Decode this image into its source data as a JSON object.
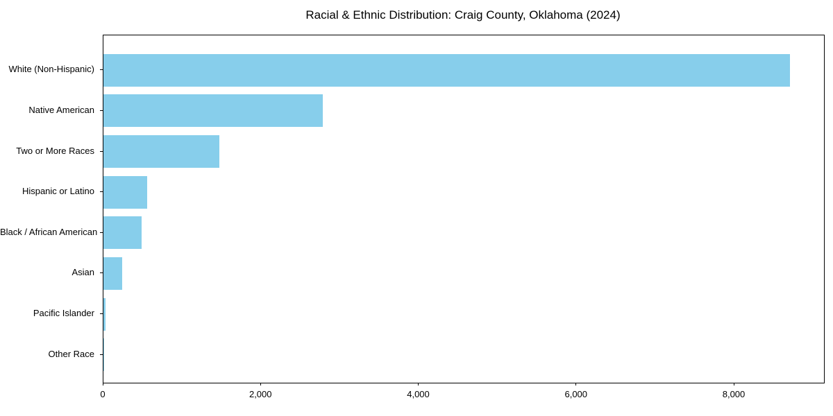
{
  "page": {
    "background": "#ffffff"
  },
  "chart_data": {
    "type": "bar",
    "orientation": "horizontal",
    "title": "Racial & Ethnic Distribution: Craig County, Oklahoma (2024)",
    "categories": [
      "White (Non-Hispanic)",
      "Native American",
      "Two or More Races",
      "Hispanic or Latino",
      "Black / African American",
      "Asian",
      "Pacific Islander",
      "Other Race"
    ],
    "values": [
      8700,
      2780,
      1470,
      555,
      485,
      240,
      30,
      10
    ],
    "xlabel": "",
    "ylabel": "",
    "xlim": [
      0,
      9135
    ],
    "x_ticks": [
      0,
      2000,
      4000,
      6000,
      8000
    ],
    "x_tick_labels": [
      "0",
      "2,000",
      "4,000",
      "6,000",
      "8,000"
    ],
    "bar_color": "#87CEEB",
    "axis_color": "#000000",
    "text_color": "#000000",
    "grid": false,
    "legend": false
  }
}
